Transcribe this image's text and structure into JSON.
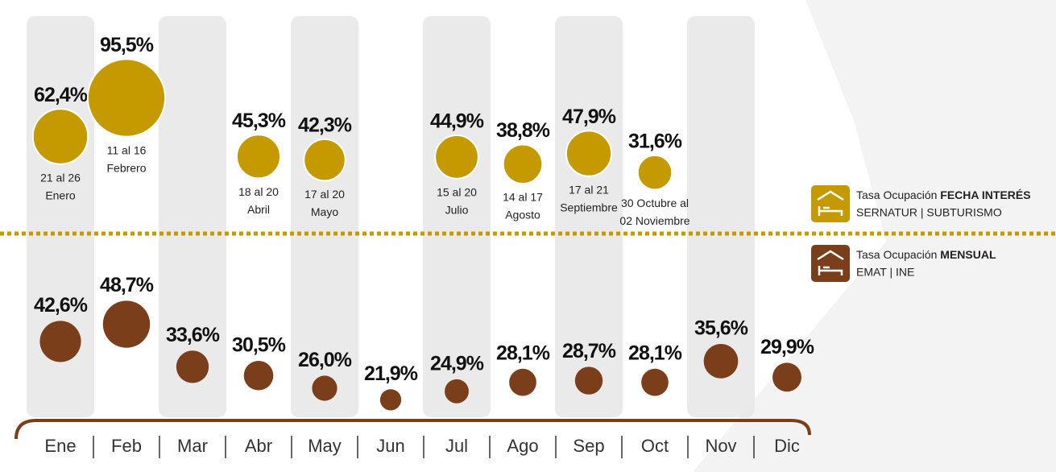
{
  "chart_data": {
    "type": "bubble",
    "categories": [
      "Ene",
      "Feb",
      "Mar",
      "Abr",
      "May",
      "Jun",
      "Jul",
      "Ago",
      "Sep",
      "Oct",
      "Nov",
      "Dic"
    ],
    "shaded_columns": [
      0,
      2,
      4,
      6,
      8,
      10
    ],
    "series": [
      {
        "color": "#c49a00",
        "values": [
          62.4,
          95.5,
          null,
          45.3,
          42.3,
          null,
          44.9,
          38.8,
          47.9,
          31.6,
          null,
          null
        ],
        "value_labels": [
          "62,4%",
          "95,5%",
          null,
          "45,3%",
          "42,3%",
          null,
          "44,9%",
          "38,8%",
          "47,9%",
          "31,6%",
          null,
          null
        ],
        "date_labels": [
          [
            "21 al 26",
            "Enero"
          ],
          [
            "11 al 16",
            "Febrero"
          ],
          null,
          [
            "18 al 20",
            "Abril"
          ],
          [
            "17 al 20",
            "Mayo"
          ],
          null,
          [
            "15 al 20",
            "Julio"
          ],
          [
            "14 al 17",
            "Agosto"
          ],
          [
            "17 al 21",
            "Septiembre"
          ],
          [
            "30 Octubre al",
            "02 Noviembre"
          ],
          null,
          null
        ]
      },
      {
        "color": "#7a3f1a",
        "values": [
          42.6,
          48.7,
          33.6,
          30.5,
          26.0,
          21.9,
          24.9,
          28.1,
          28.7,
          28.1,
          35.6,
          29.9
        ],
        "value_labels": [
          "42,6%",
          "48,7%",
          "33,6%",
          "30,5%",
          "26,0%",
          "21,9%",
          "24,9%",
          "28,1%",
          "28,7%",
          "28,1%",
          "35,6%",
          "29,9%"
        ]
      }
    ],
    "legend": [
      {
        "text": "Tasa Ocupación",
        "bold": "FECHA INTERÉS",
        "source": "SERNATUR | SUBTURISMO",
        "color": "#c49a00"
      },
      {
        "text": "Tasa Ocupación",
        "bold": "MENSUAL",
        "source": "EMAT | INE",
        "color": "#7a3f1a"
      }
    ]
  }
}
